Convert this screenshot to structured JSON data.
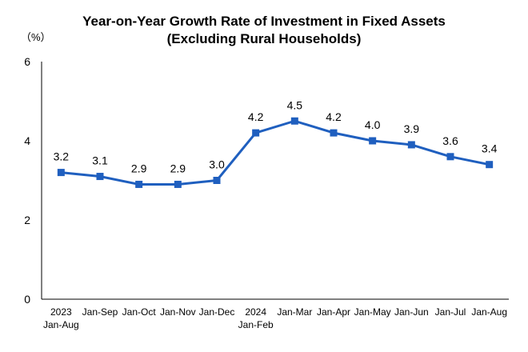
{
  "chart_data": {
    "type": "line",
    "title": "Year-on-Year Growth Rate of Investment in Fixed Assets",
    "subtitle": "(Excluding Rural Households)",
    "unit_label": "（%）",
    "categories": [
      [
        "2023",
        "Jan-Aug"
      ],
      [
        "Jan-Sep"
      ],
      [
        "Jan-Oct"
      ],
      [
        "Jan-Nov"
      ],
      [
        "Jan-Dec"
      ],
      [
        "2024",
        "Jan-Feb"
      ],
      [
        "Jan-Mar"
      ],
      [
        "Jan-Apr"
      ],
      [
        "Jan-May"
      ],
      [
        "Jan-Jun"
      ],
      [
        "Jan-Jul"
      ],
      [
        "Jan-Aug"
      ]
    ],
    "series": [
      {
        "values": [
          3.2,
          3.1,
          2.9,
          2.9,
          3.0,
          4.2,
          4.5,
          4.2,
          4.0,
          3.9,
          3.6,
          3.4
        ],
        "labels": [
          "3.2",
          "3.1",
          "2.9",
          "2.9",
          "3.0",
          "4.2",
          "4.5",
          "4.2",
          "4.0",
          "3.9",
          "3.6",
          "3.4"
        ],
        "color": "#1f5fbf"
      }
    ],
    "ylim": [
      0,
      6
    ],
    "yticks": [
      "0",
      "2",
      "4",
      "6"
    ],
    "grid": false,
    "legend": "none"
  }
}
